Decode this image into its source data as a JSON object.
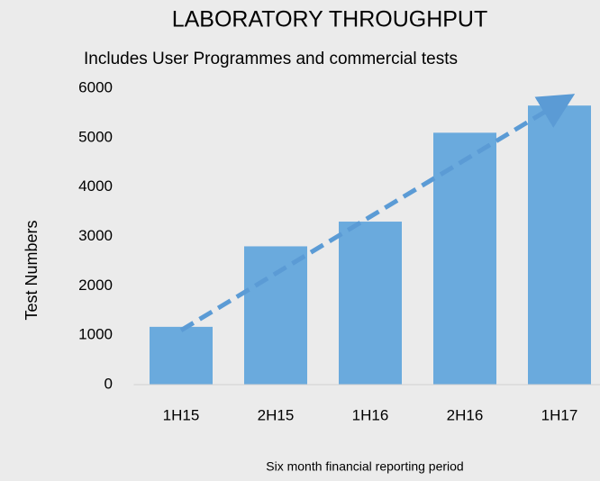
{
  "chart_data": {
    "type": "bar",
    "title": "LABORATORY THROUGHPUT",
    "subtitle": "Includes User Programmes and commercial tests",
    "x_label": "Six month financial reporting period",
    "y_label": "Test Numbers",
    "categories": [
      "1H15",
      "2H15",
      "1H16",
      "2H16",
      "1H17"
    ],
    "values": [
      1170,
      2800,
      3300,
      5100,
      5650
    ],
    "color": "#6aaadd",
    "trend": {
      "values": [
        1100,
        2250,
        3400,
        4550,
        5700
      ],
      "color": "#5b9bd5"
    },
    "ylim": [
      0,
      6000
    ],
    "yticks": [
      0,
      1000,
      2000,
      3000,
      4000,
      5000,
      6000
    ],
    "grid": false
  }
}
